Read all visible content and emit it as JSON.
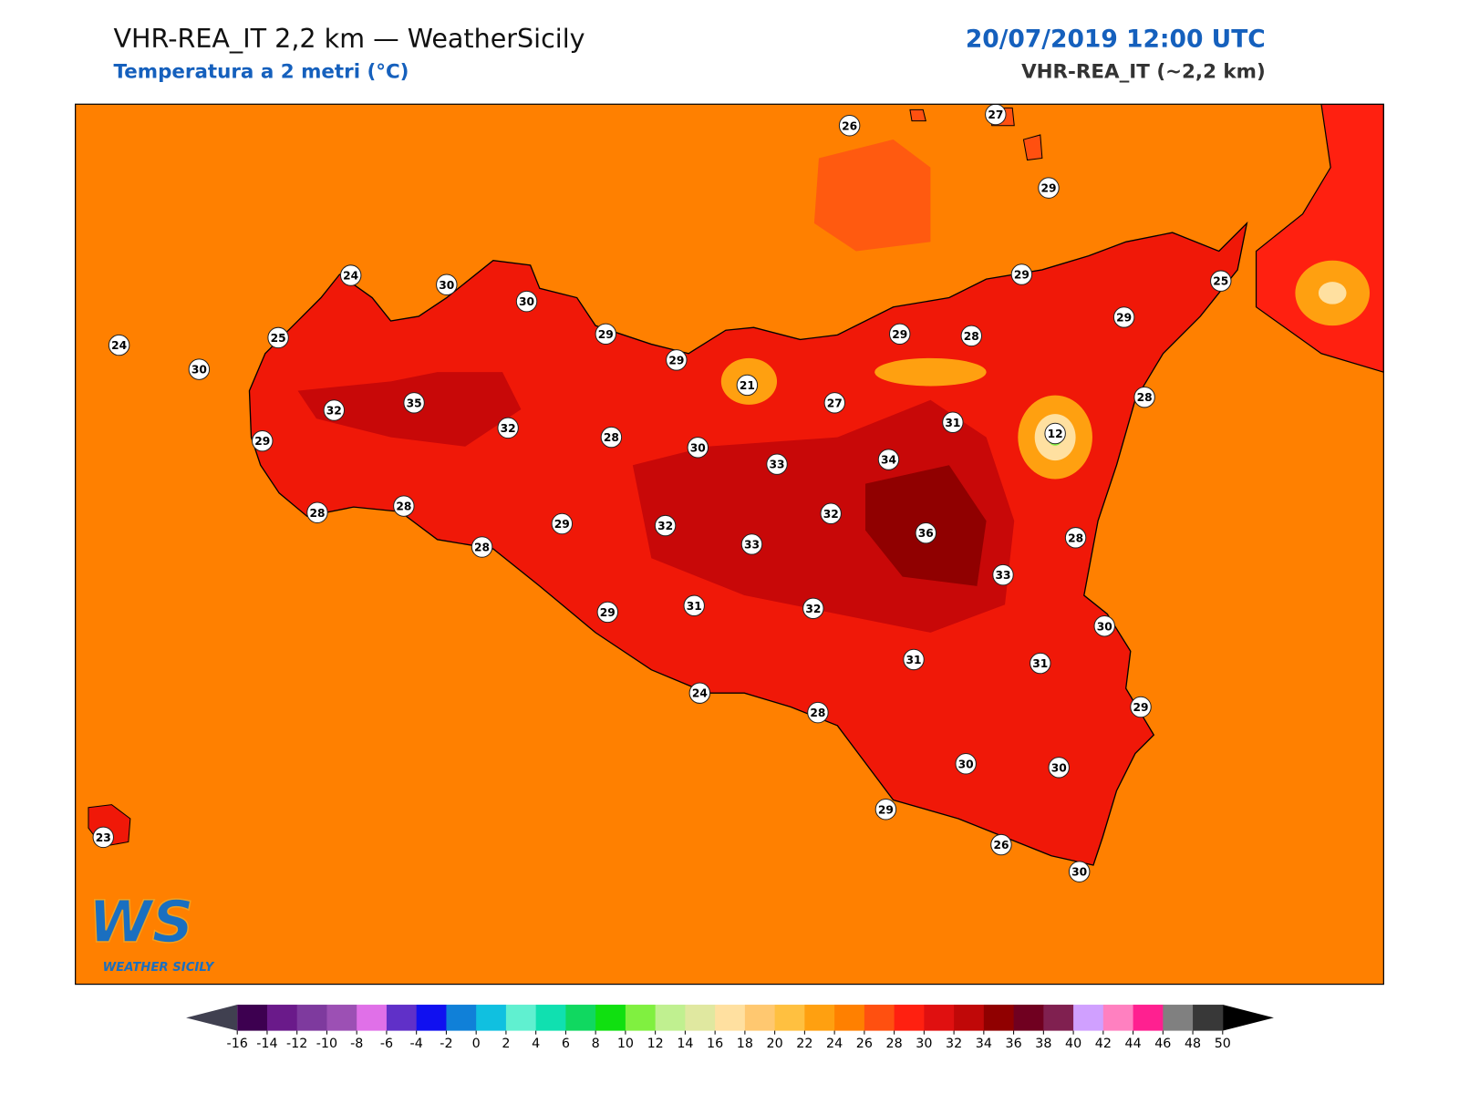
{
  "header": {
    "title": "VHR-REA_IT 2,2 km — WeatherSicily",
    "subtitle": "Temperatura a 2 metri (°C)",
    "date": "20/07/2019 12:00 UTC",
    "model": "VHR-REA_IT (~2,2 km)"
  },
  "logo": {
    "mark": "WS",
    "text": "WEATHER SICILY"
  },
  "stations": [
    26,
    27,
    29,
    24,
    30,
    30,
    29,
    25,
    24,
    25,
    29,
    29,
    29,
    28,
    29,
    30,
    21,
    27,
    28,
    32,
    35,
    32,
    28,
    30,
    31,
    12,
    29,
    33,
    34,
    28,
    28,
    29,
    32,
    33,
    32,
    36,
    28,
    28,
    33,
    29,
    31,
    32,
    30,
    31,
    31,
    24,
    28,
    29,
    30,
    30,
    29,
    23,
    26,
    30
  ],
  "colorbar": {
    "ticks": [
      -16,
      -14,
      -12,
      -10,
      -8,
      -6,
      -4,
      -2,
      0,
      2,
      4,
      6,
      8,
      10,
      12,
      14,
      16,
      18,
      20,
      22,
      24,
      26,
      28,
      30,
      32,
      34,
      36,
      38,
      40,
      42,
      44,
      46,
      48,
      50
    ],
    "colors": [
      "#3d0050",
      "#6a1a8a",
      "#7e3a9e",
      "#9c50b4",
      "#e070e8",
      "#6030c8",
      "#1010f0",
      "#1080d8",
      "#10c0e0",
      "#60f0d0",
      "#10e0b0",
      "#10d860",
      "#10e010",
      "#80f040",
      "#c0f090",
      "#e0e8a0",
      "#ffe0a0",
      "#ffc870",
      "#ffc040",
      "#ffa010",
      "#ff8000",
      "#ff5010",
      "#ff2010",
      "#e01010",
      "#c00808",
      "#900000",
      "#700020",
      "#802050",
      "#d0a0ff",
      "#ff80c0",
      "#ff2090",
      "#808080",
      "#383838"
    ],
    "extend_colors": [
      "#404050",
      "#000000"
    ]
  }
}
